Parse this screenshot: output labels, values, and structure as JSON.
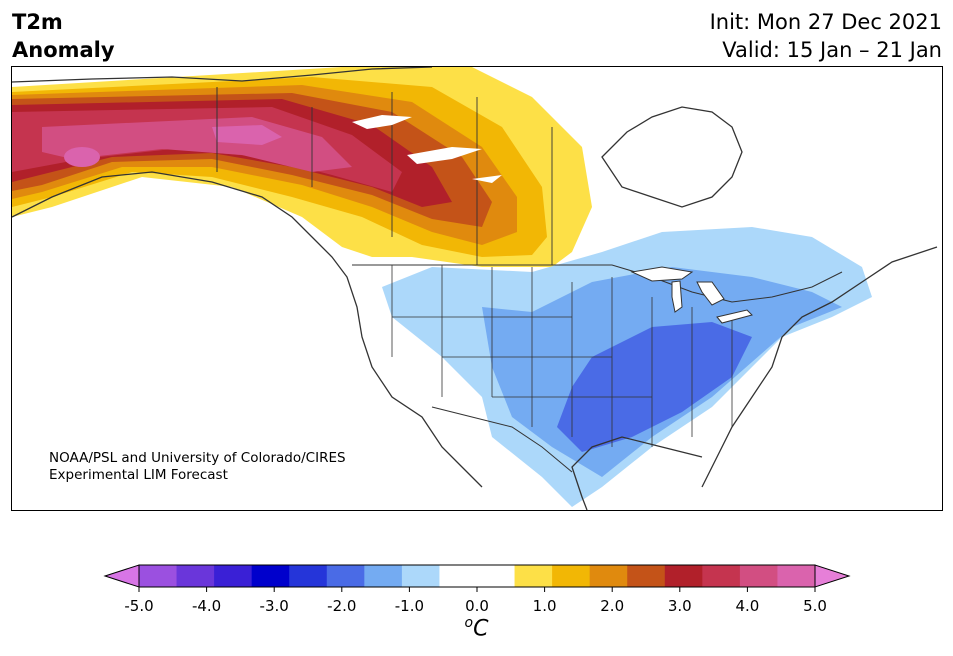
{
  "title": {
    "line1": "T2m",
    "line2": "Anomaly"
  },
  "info": {
    "init": "Init: Mon 27 Dec 2021",
    "valid": "Valid: 15 Jan – 21 Jan"
  },
  "credit": {
    "line1": "NOAA/PSL and University of Colorado/CIRES",
    "line2": "Experimental LIM Forecast"
  },
  "colorbar": {
    "unit_base": "o",
    "unit_main": "C",
    "ticks": [
      "-5.0",
      "-4.0",
      "-3.0",
      "-2.0",
      "-1.0",
      "0.0",
      "1.0",
      "2.0",
      "3.0",
      "4.0",
      "5.0"
    ],
    "under_color": "#d875e6",
    "over_color": "#e67fd8",
    "colors": [
      "#d875e6",
      "#9b50e0",
      "#6a36da",
      "#3a20d6",
      "#0000cc",
      "#2535d9",
      "#4a6be6",
      "#74abf2",
      "#acd8fa",
      "#ffffff",
      "#ffffff",
      "#fde047",
      "#f2b705",
      "#e08a0e",
      "#c45318",
      "#b1202a",
      "#c5344f",
      "#d24e82",
      "#da63ad",
      "#e67fd8"
    ]
  }
}
